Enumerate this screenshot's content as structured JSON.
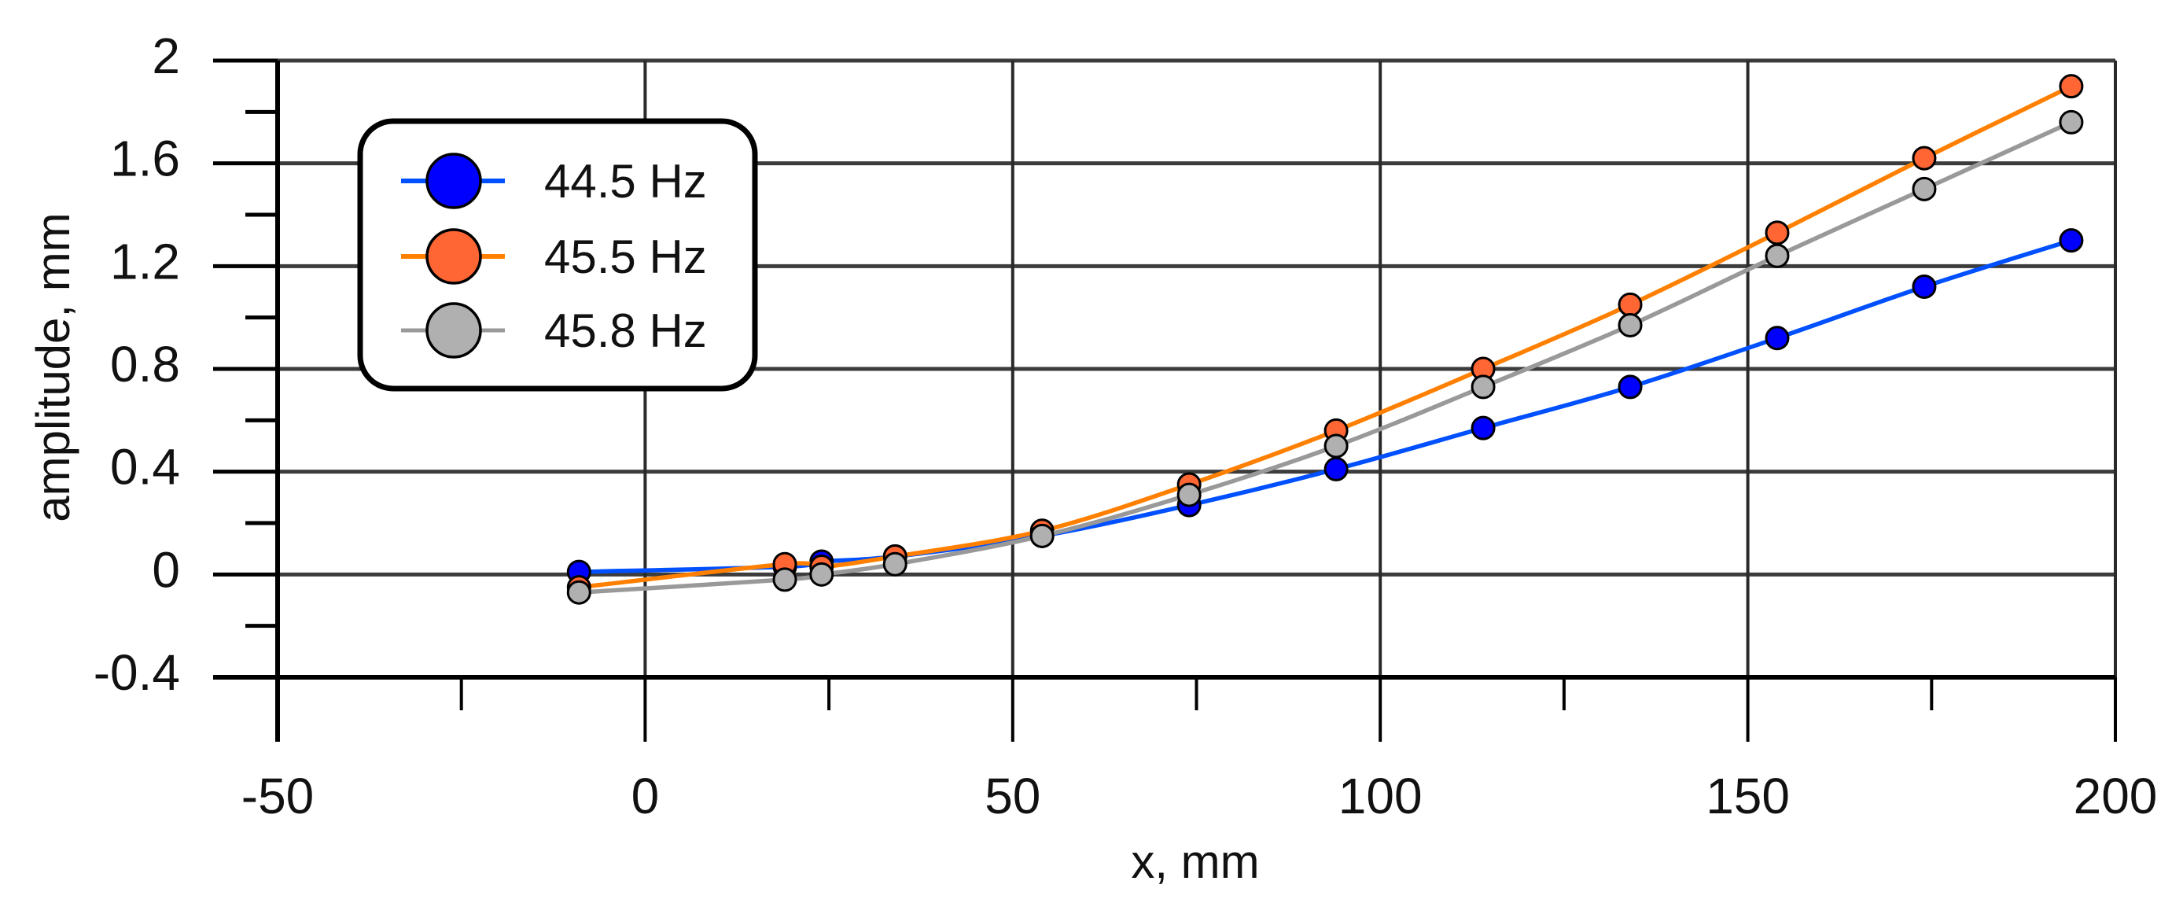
{
  "chart_data": {
    "type": "line",
    "title": "",
    "xlabel": "x, mm",
    "ylabel": "amplitude, mm",
    "xlim": [
      -50,
      200
    ],
    "ylim": [
      -0.4,
      2
    ],
    "x_ticks": [
      -50,
      0,
      50,
      100,
      150,
      200
    ],
    "x_tick_labels": [
      "-50",
      "0",
      "50",
      "100",
      "150",
      "200"
    ],
    "x_minor_ticks": [
      -25,
      25,
      75,
      125,
      175
    ],
    "y_ticks": [
      -0.4,
      0,
      0.4,
      0.8,
      1.2,
      1.6,
      2
    ],
    "y_tick_labels": [
      "-0.4",
      "0",
      "0.4",
      "0.8",
      "1.2",
      "1.6",
      "2"
    ],
    "y_minor_ticks": [
      -0.2,
      0.2,
      0.6,
      1.0,
      1.4,
      1.8
    ],
    "grid": true,
    "legend_position": "upper-left",
    "x": [
      -9,
      19,
      24,
      34,
      54,
      74,
      94,
      114,
      134,
      154,
      174,
      194
    ],
    "series": [
      {
        "name": "44.5 Hz",
        "line_color": "#0050FF",
        "marker_color": "#0000FF",
        "values": [
          0.01,
          0.03,
          0.05,
          0.07,
          0.15,
          0.27,
          0.41,
          0.57,
          0.73,
          0.92,
          1.12,
          1.3
        ]
      },
      {
        "name": "45.5 Hz",
        "line_color": "#FF8000",
        "marker_color": "#FF6633",
        "values": [
          -0.05,
          0.04,
          0.03,
          0.07,
          0.17,
          0.35,
          0.56,
          0.8,
          1.05,
          1.33,
          1.62,
          1.9
        ]
      },
      {
        "name": "45.8 Hz",
        "line_color": "#999999",
        "marker_color": "#B0B0B0",
        "values": [
          -0.07,
          -0.02,
          0.0,
          0.04,
          0.15,
          0.31,
          0.5,
          0.73,
          0.97,
          1.24,
          1.5,
          1.76
        ]
      }
    ]
  },
  "legend": {
    "items": [
      {
        "label": "44.5 Hz"
      },
      {
        "label": "45.5 Hz"
      },
      {
        "label": "45.8 Hz"
      }
    ]
  },
  "axes": {
    "xlabel": "x, mm",
    "ylabel": "amplitude, mm"
  }
}
